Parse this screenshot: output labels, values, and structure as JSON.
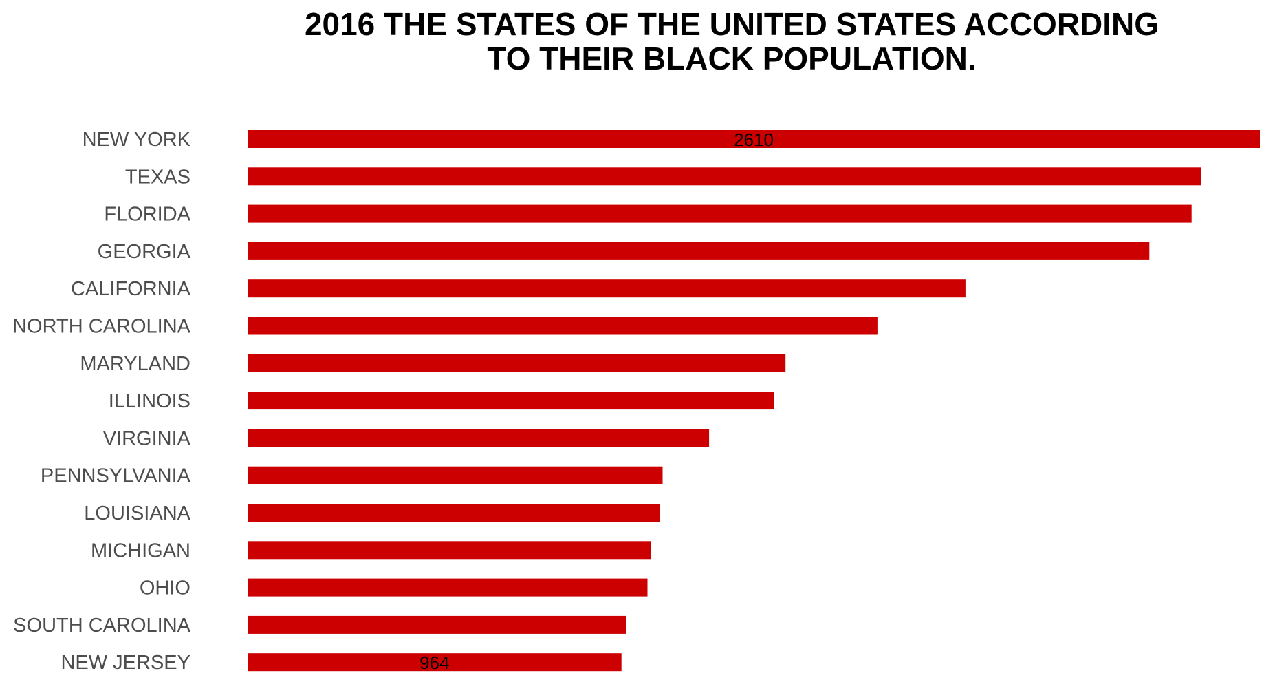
{
  "chart_data": {
    "type": "bar",
    "orientation": "horizontal",
    "title_lines": [
      "2016 THE STATES OF THE UNITED STATES ACCORDING",
      "TO THEIR BLACK POPULATION."
    ],
    "xlabel": "",
    "ylabel": "",
    "grid": false,
    "legend": "none",
    "bar_color": "#cc0000",
    "xlim": [
      0,
      2610
    ],
    "categories": [
      "NEW YORK",
      "TEXAS",
      "FLORIDA",
      "GEORGIA",
      "CALIFORNIA",
      "NORTH CAROLINA",
      "MARYLAND",
      "ILLINOIS",
      "VIRGINIA",
      "PENNSYLVANIA",
      "LOUISIANA",
      "MICHIGAN",
      "OHIO",
      "SOUTH CAROLINA",
      "NEW JERSEY"
    ],
    "values": [
      2610,
      2458,
      2434,
      2325,
      1851,
      1624,
      1387,
      1358,
      1190,
      1070,
      1063,
      1040,
      1031,
      976,
      964
    ],
    "data_labels": [
      {
        "category": "NEW YORK",
        "text": "2610"
      },
      {
        "category": "NEW JERSEY",
        "text": "964"
      }
    ]
  }
}
